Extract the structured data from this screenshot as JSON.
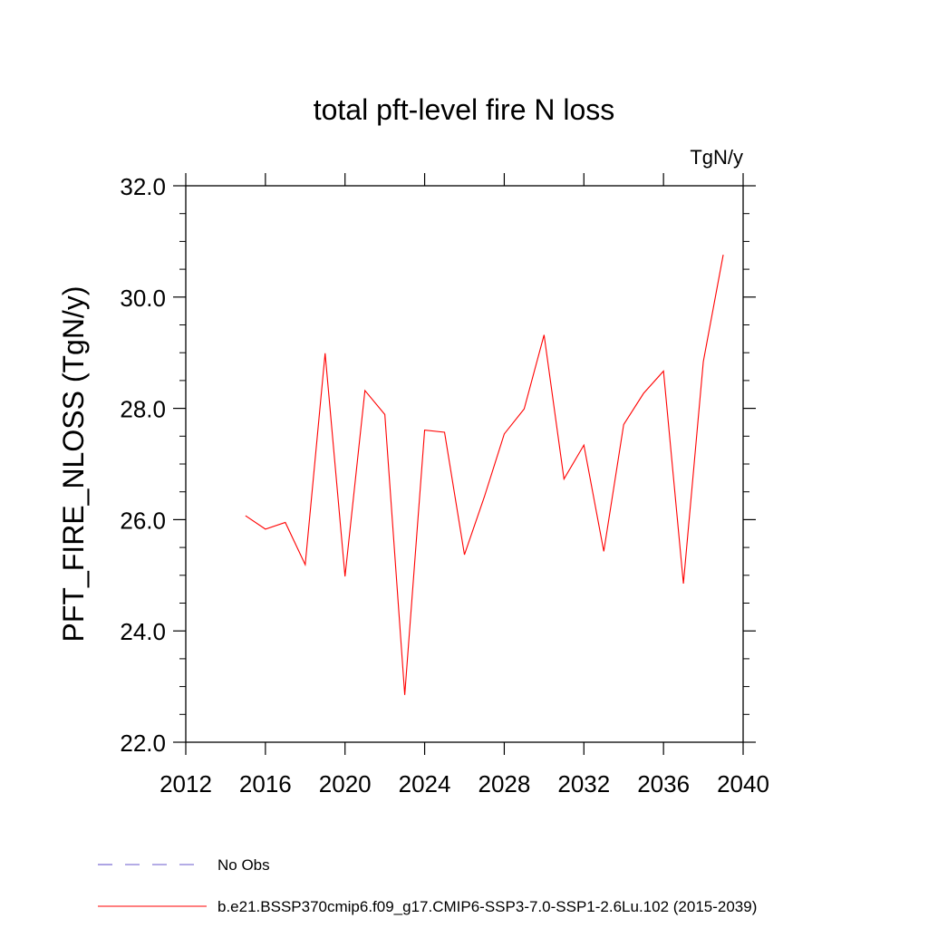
{
  "chart_data": {
    "type": "line",
    "title": "total pft-level fire N loss",
    "units": "TgN/y",
    "xlabel": "",
    "ylabel": "PFT_FIRE_NLOSS  (TgN/y)",
    "xlim": [
      2012,
      2040
    ],
    "ylim": [
      22.0,
      32.0
    ],
    "x_ticks": [
      2012,
      2016,
      2020,
      2024,
      2028,
      2032,
      2036,
      2040
    ],
    "x_tick_labels": [
      "2012",
      "2016",
      "2020",
      "2024",
      "2028",
      "2032",
      "2036",
      "2040"
    ],
    "y_ticks": [
      22.0,
      24.0,
      26.0,
      28.0,
      30.0,
      32.0
    ],
    "y_tick_labels": [
      "22.0",
      "24.0",
      "26.0",
      "28.0",
      "30.0",
      "32.0"
    ],
    "grid": false,
    "legend_position": "bottom-left",
    "series": [
      {
        "name": "No Obs",
        "color": "#6a5acd",
        "style": "dashed",
        "x": [],
        "values": []
      },
      {
        "name": "b.e21.BSSP370cmip6.f09_g17.CMIP6-SSP3-7.0-SSP1-2.6Lu.102 (2015-2039)",
        "color": "#ff0000",
        "style": "solid",
        "x": [
          2015,
          2016,
          2017,
          2018,
          2019,
          2020,
          2021,
          2022,
          2023,
          2024,
          2025,
          2026,
          2027,
          2028,
          2029,
          2030,
          2031,
          2032,
          2033,
          2034,
          2035,
          2036,
          2037,
          2038,
          2039
        ],
        "values": [
          26.07,
          25.83,
          25.95,
          25.19,
          28.99,
          24.98,
          28.32,
          27.89,
          22.85,
          27.61,
          27.57,
          25.37,
          26.41,
          27.54,
          27.99,
          29.32,
          26.73,
          27.34,
          25.43,
          27.71,
          28.27,
          28.67,
          24.85,
          28.84,
          30.76
        ]
      }
    ]
  }
}
